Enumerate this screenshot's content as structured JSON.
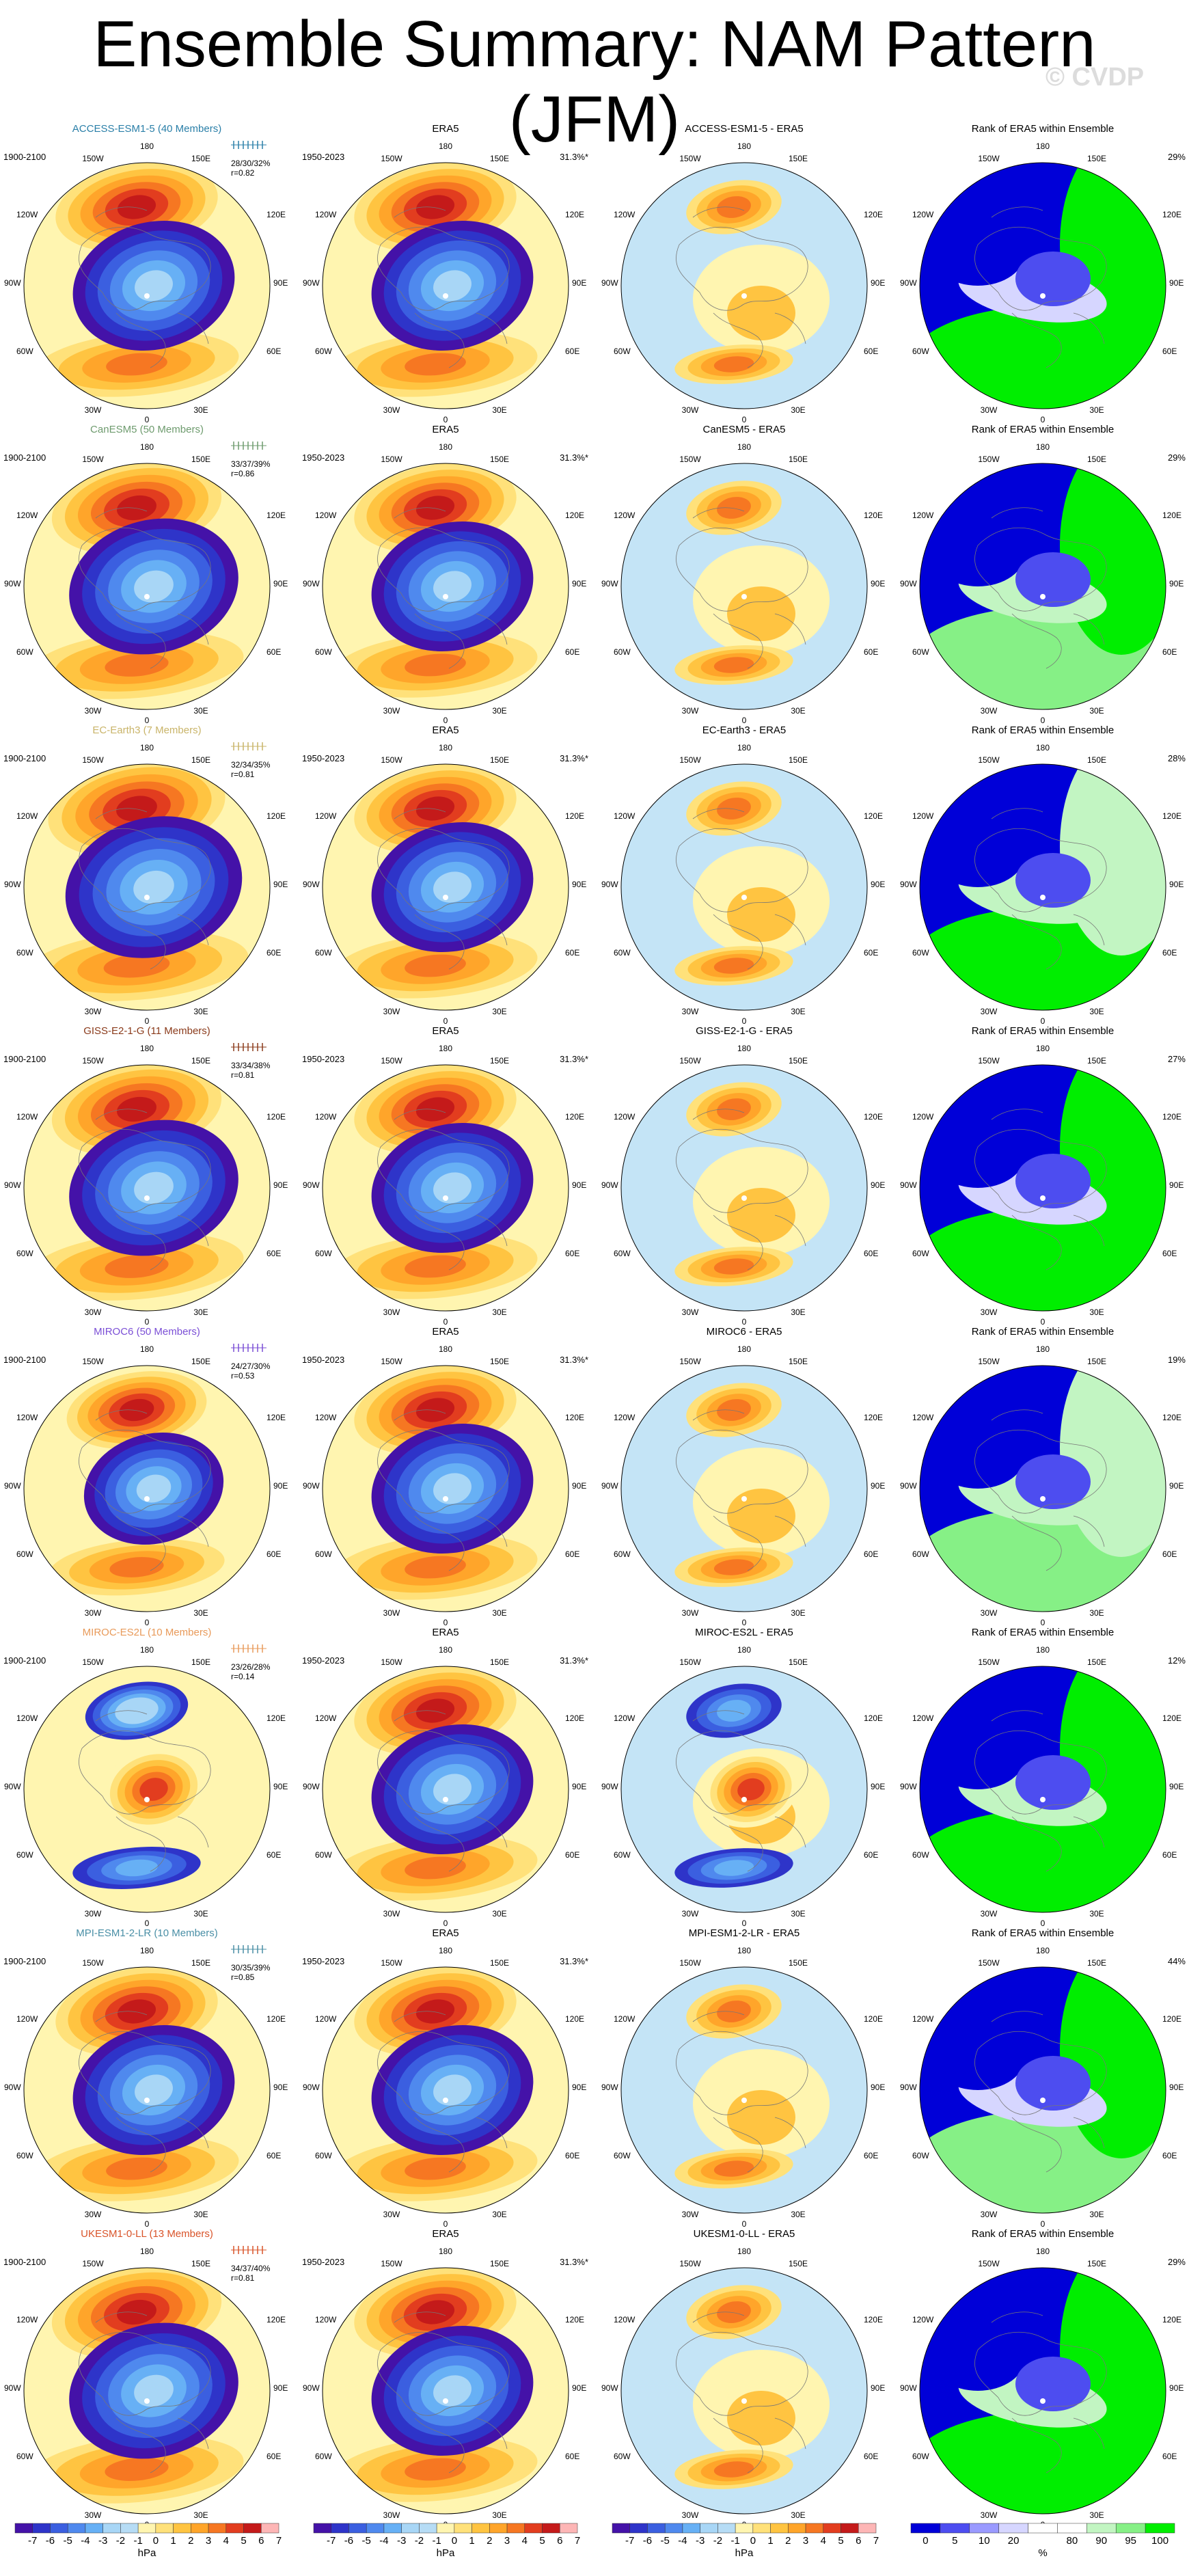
{
  "page_title": "Ensemble Summary: NAM Pattern (JFM)",
  "watermark": "© CVDP",
  "lon_labels": {
    "n": "180",
    "nw": "150W",
    "ne": "150E",
    "w1": "120W",
    "e1": "120E",
    "w2": "90W",
    "e2": "90E",
    "w3": "60W",
    "e3": "60E",
    "sw": "30W",
    "se": "30E",
    "s": "0"
  },
  "colors": {
    "neg": [
      "#4412a8",
      "#2e34c9",
      "#3b5fe0",
      "#4f89ee",
      "#67b0f5",
      "#a8d6f6",
      "#c4e4f6"
    ],
    "pos": [
      "#fff5b0",
      "#ffe17a",
      "#ffc441",
      "#ffa52a",
      "#f67722",
      "#e23d1f",
      "#c41a1a",
      "#fdb6b6"
    ],
    "rank": [
      "#0000d8",
      "#4d4df0",
      "#9a9aff",
      "#d6d6ff",
      "#ffffff",
      "#ffffff",
      "#c2f5c2",
      "#86f086",
      "#00ee00"
    ]
  },
  "rows": [
    {
      "model": "ACCESS-ESM1-5 (40 Members)",
      "model_color": "#2a7fa8",
      "stats1": "28/30/32%",
      "stats2": "r=0.82",
      "diff": "ACCESS-ESM1-5 - ERA5",
      "rank_pct": "29%",
      "p": 1.0,
      "neg": [
        0,
        0
      ],
      "f": [
        1,
        1,
        0
      ]
    },
    {
      "model": "CanESM5 (50 Members)",
      "model_color": "#6e9b6e",
      "stats1": "33/37/39%",
      "stats2": "r=0.86",
      "diff": "CanESM5 - ERA5",
      "rank_pct": "29%",
      "p": 1.05,
      "neg": [
        0,
        0
      ],
      "f": [
        0,
        1,
        1
      ]
    },
    {
      "model": "EC-Earth3 (7 Members)",
      "model_color": "#c9b469",
      "stats1": "32/34/35%",
      "stats2": "r=0.81",
      "diff": "EC-Earth3 - ERA5",
      "rank_pct": "28%",
      "p": 1.1,
      "neg": [
        0,
        0
      ],
      "f": [
        1,
        0,
        1
      ]
    },
    {
      "model": "GISS-E2-1-G (11 Members)",
      "model_color": "#8a3a1a",
      "stats1": "33/34/38%",
      "stats2": "r=0.81",
      "diff": "GISS-E2-1-G - ERA5",
      "rank_pct": "27%",
      "p": 1.05,
      "neg": [
        0,
        0
      ],
      "f": [
        1,
        1,
        0
      ]
    },
    {
      "model": "MIROC6 (50 Members)",
      "model_color": "#7b4fd6",
      "stats1": "24/27/30%",
      "stats2": "r=0.53",
      "diff": "MIROC6 - ERA5",
      "rank_pct": "19%",
      "p": 0.85,
      "neg": [
        0,
        0
      ],
      "f": [
        0,
        0,
        1
      ]
    },
    {
      "model": "MIROC-ES2L (10 Members)",
      "model_color": "#e89a5a",
      "stats1": "23/26/28%",
      "stats2": "r=0.14",
      "diff": "MIROC-ES2L - ERA5",
      "rank_pct": "12%",
      "p": 0.6,
      "neg": [
        1,
        1
      ],
      "f": [
        1,
        1,
        1
      ]
    },
    {
      "model": "MPI-ESM1-2-LR (10 Members)",
      "model_color": "#4a8fa6",
      "stats1": "30/35/39%",
      "stats2": "r=0.85",
      "diff": "MPI-ESM1-2-LR - ERA5",
      "rank_pct": "44%",
      "p": 1.0,
      "neg": [
        0,
        0
      ],
      "f": [
        0,
        1,
        0
      ]
    },
    {
      "model": "UKESM1-0-LL (13 Members)",
      "model_color": "#d9542a",
      "stats1": "34/37/40%",
      "stats2": "r=0.81",
      "diff": "UKESM1-0-LL - ERA5",
      "rank_pct": "29%",
      "p": 1.05,
      "neg": [
        0,
        0
      ],
      "f": [
        1,
        1,
        1
      ]
    }
  ],
  "model_period": "1900-2100",
  "obs_title": "ERA5",
  "obs_period": "1950-2023",
  "obs_pct": "31.3%*",
  "rank_title": "Rank of ERA5 within Ensemble",
  "colorbar": {
    "ticks": [
      "-7",
      "-6",
      "-5",
      "-4",
      "-3",
      "-2",
      "-1",
      "0",
      "1",
      "2",
      "3",
      "4",
      "5",
      "6",
      "7"
    ],
    "unit": "hPa",
    "rank_ticks": [
      "0",
      "5",
      "10",
      "20",
      "80",
      "90",
      "95",
      "100"
    ],
    "rank_unit": "%"
  }
}
